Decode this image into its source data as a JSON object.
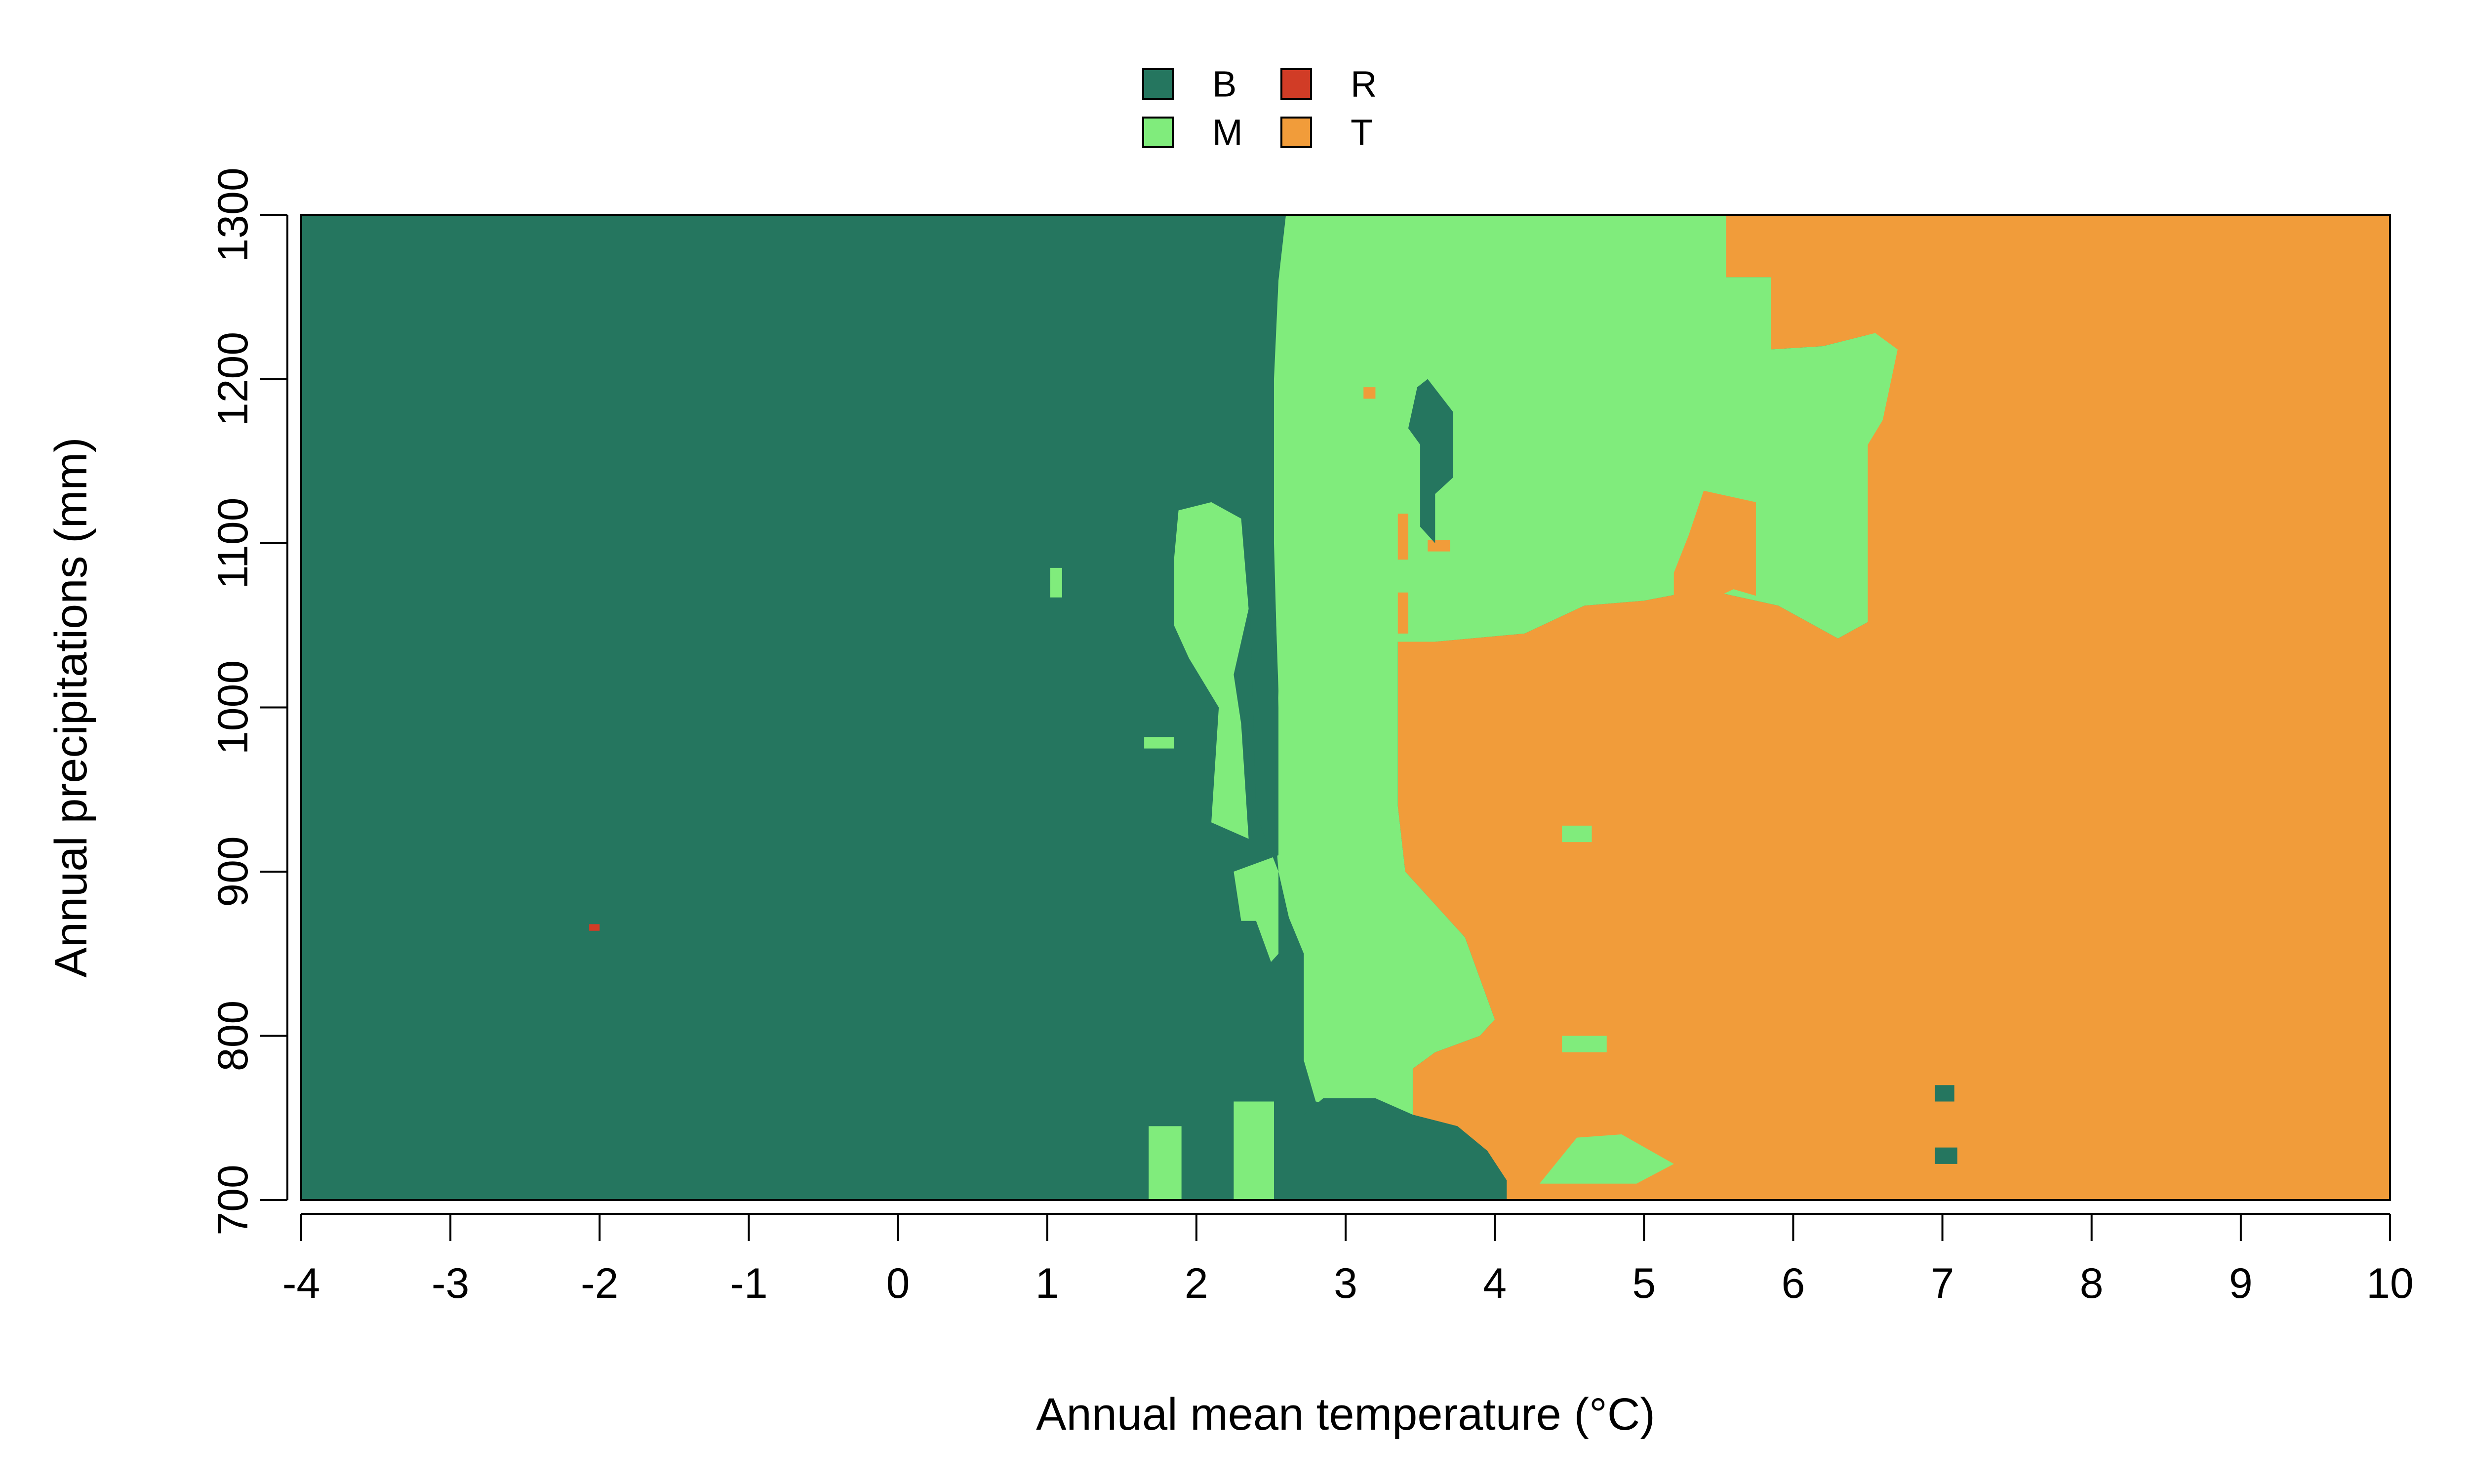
{
  "chart_data": {
    "type": "heatmap",
    "title": "",
    "xlabel": "Annual mean temperature (°C)",
    "ylabel": "Annual precipitations (mm)",
    "xlim": [
      -4,
      10
    ],
    "ylim": [
      700,
      1300
    ],
    "x_ticks": [
      -4,
      -3,
      -2,
      -1,
      0,
      1,
      2,
      3,
      4,
      5,
      6,
      7,
      8,
      9,
      10
    ],
    "x_tick_labels": [
      "-4",
      "-3",
      "-2",
      "-1",
      "0",
      "1",
      "2",
      "3",
      "4",
      "5",
      "6",
      "7",
      "8",
      "9",
      "10"
    ],
    "y_ticks": [
      700,
      800,
      900,
      1000,
      1100,
      1200,
      1300
    ],
    "y_tick_labels": [
      "700",
      "800",
      "900",
      "1000",
      "1100",
      "1200",
      "1300"
    ],
    "grid": false,
    "legend_position": "top-center",
    "legend": [
      {
        "key": "B",
        "label": "B",
        "color": "#25765F"
      },
      {
        "key": "R",
        "label": "R",
        "color": "#D13C26"
      },
      {
        "key": "M",
        "label": "M",
        "color": "#80EC7C"
      },
      {
        "key": "T",
        "label": "T",
        "color": "#F19C3A"
      }
    ],
    "background_class": "B",
    "regions": [
      {
        "cls": "M",
        "points": [
          [
            2.6,
            1300
          ],
          [
            5.55,
            1300
          ],
          [
            5.55,
            1262
          ],
          [
            5.85,
            1262
          ],
          [
            5.85,
            1218
          ],
          [
            6.2,
            1220
          ],
          [
            6.55,
            1228
          ],
          [
            6.7,
            1218
          ],
          [
            6.6,
            1175
          ],
          [
            6.5,
            1160
          ],
          [
            6.5,
            1052
          ],
          [
            6.3,
            1042
          ],
          [
            5.9,
            1062
          ],
          [
            5.4,
            1072
          ],
          [
            5.0,
            1065
          ],
          [
            4.6,
            1062
          ],
          [
            4.2,
            1045
          ],
          [
            3.6,
            1040
          ],
          [
            3.35,
            1040
          ],
          [
            3.35,
            940
          ],
          [
            3.4,
            900
          ],
          [
            3.6,
            880
          ],
          [
            3.8,
            860
          ],
          [
            4.0,
            810
          ],
          [
            3.9,
            800
          ],
          [
            3.6,
            790
          ],
          [
            3.45,
            780
          ],
          [
            3.45,
            750
          ],
          [
            2.8,
            760
          ],
          [
            2.72,
            785
          ],
          [
            2.72,
            850
          ],
          [
            2.62,
            872
          ],
          [
            2.55,
            900
          ],
          [
            2.55,
            1000
          ],
          [
            2.52,
            1100
          ],
          [
            2.52,
            1200
          ],
          [
            2.55,
            1260
          ]
        ]
      },
      {
        "cls": "M",
        "points": [
          [
            1.88,
            1120
          ],
          [
            2.1,
            1125
          ],
          [
            2.3,
            1115
          ],
          [
            2.35,
            1060
          ],
          [
            2.25,
            1020
          ],
          [
            2.3,
            990
          ],
          [
            2.35,
            920
          ],
          [
            2.1,
            930
          ],
          [
            2.15,
            1000
          ],
          [
            1.95,
            1030
          ],
          [
            1.85,
            1050
          ],
          [
            1.85,
            1090
          ]
        ]
      },
      {
        "cls": "M",
        "points": [
          [
            2.25,
            900
          ],
          [
            2.55,
            910
          ],
          [
            2.55,
            850
          ],
          [
            2.5,
            845
          ],
          [
            2.4,
            870
          ],
          [
            2.3,
            870
          ]
        ]
      },
      {
        "cls": "M",
        "points": [
          [
            1.68,
            700
          ],
          [
            1.9,
            700
          ],
          [
            1.9,
            745
          ],
          [
            1.68,
            745
          ]
        ]
      },
      {
        "cls": "M",
        "points": [
          [
            2.25,
            700
          ],
          [
            2.52,
            700
          ],
          [
            2.52,
            760
          ],
          [
            2.25,
            760
          ]
        ]
      },
      {
        "cls": "M",
        "points": [
          [
            4.3,
            710
          ],
          [
            4.95,
            710
          ],
          [
            5.2,
            722
          ],
          [
            4.85,
            740
          ],
          [
            4.55,
            738
          ]
        ]
      },
      {
        "cls": "M",
        "points": [
          [
            4.45,
            790
          ],
          [
            4.75,
            790
          ],
          [
            4.75,
            800
          ],
          [
            4.45,
            800
          ]
        ]
      },
      {
        "cls": "M",
        "points": [
          [
            4.45,
            918
          ],
          [
            4.65,
            918
          ],
          [
            4.65,
            928
          ],
          [
            4.45,
            928
          ]
        ]
      },
      {
        "cls": "M",
        "points": [
          [
            1.02,
            1067
          ],
          [
            1.1,
            1067
          ],
          [
            1.1,
            1085
          ],
          [
            1.02,
            1085
          ]
        ]
      },
      {
        "cls": "M",
        "points": [
          [
            1.65,
            975
          ],
          [
            1.85,
            975
          ],
          [
            1.85,
            982
          ],
          [
            1.65,
            982
          ]
        ]
      },
      {
        "cls": "T",
        "points": [
          [
            5.2,
            1055
          ],
          [
            5.6,
            1072
          ],
          [
            5.75,
            1068
          ],
          [
            5.75,
            1125
          ],
          [
            5.4,
            1132
          ],
          [
            5.3,
            1105
          ],
          [
            5.2,
            1082
          ]
        ]
      },
      {
        "cls": "T",
        "points": [
          [
            3.35,
            1090
          ],
          [
            3.42,
            1090
          ],
          [
            3.42,
            1118
          ],
          [
            3.35,
            1118
          ]
        ]
      },
      {
        "cls": "T",
        "points": [
          [
            3.35,
            1045
          ],
          [
            3.42,
            1045
          ],
          [
            3.42,
            1070
          ],
          [
            3.35,
            1070
          ]
        ]
      },
      {
        "cls": "T",
        "points": [
          [
            3.55,
            1095
          ],
          [
            3.7,
            1095
          ],
          [
            3.7,
            1102
          ],
          [
            3.55,
            1102
          ]
        ]
      },
      {
        "cls": "T",
        "points": [
          [
            3.12,
            1188
          ],
          [
            3.2,
            1188
          ],
          [
            3.2,
            1195
          ],
          [
            3.12,
            1195
          ]
        ]
      },
      {
        "cls": "B",
        "points": [
          [
            3.55,
            1200
          ],
          [
            3.72,
            1180
          ],
          [
            3.72,
            1140
          ],
          [
            3.6,
            1130
          ],
          [
            3.6,
            1100
          ],
          [
            3.5,
            1110
          ],
          [
            3.5,
            1160
          ],
          [
            3.42,
            1170
          ],
          [
            3.48,
            1195
          ]
        ]
      },
      {
        "cls": "B",
        "points": [
          [
            2.35,
            1090
          ],
          [
            2.52,
            1090
          ],
          [
            2.55,
            1010
          ],
          [
            2.52,
            935
          ],
          [
            2.55,
            900
          ],
          [
            2.4,
            935
          ],
          [
            2.38,
            1000
          ]
        ]
      },
      {
        "cls": "B",
        "points": [
          [
            2.72,
            700
          ],
          [
            4.08,
            700
          ],
          [
            4.08,
            712
          ],
          [
            3.95,
            730
          ],
          [
            3.75,
            745
          ],
          [
            3.45,
            752
          ],
          [
            3.2,
            762
          ],
          [
            2.85,
            762
          ],
          [
            2.72,
            752
          ]
        ]
      },
      {
        "cls": "B",
        "points": [
          [
            6.95,
            722
          ],
          [
            7.1,
            722
          ],
          [
            7.1,
            732
          ],
          [
            6.95,
            732
          ]
        ]
      },
      {
        "cls": "B",
        "points": [
          [
            6.95,
            760
          ],
          [
            7.08,
            760
          ],
          [
            7.08,
            770
          ],
          [
            6.95,
            770
          ]
        ]
      },
      {
        "cls": "R",
        "points": [
          [
            -2.07,
            864
          ],
          [
            -2.0,
            864
          ],
          [
            -2.0,
            868
          ],
          [
            -2.07,
            868
          ]
        ]
      }
    ],
    "tail_right": {
      "cls": "T",
      "x_from": 6.5,
      "x_to": 10
    }
  }
}
